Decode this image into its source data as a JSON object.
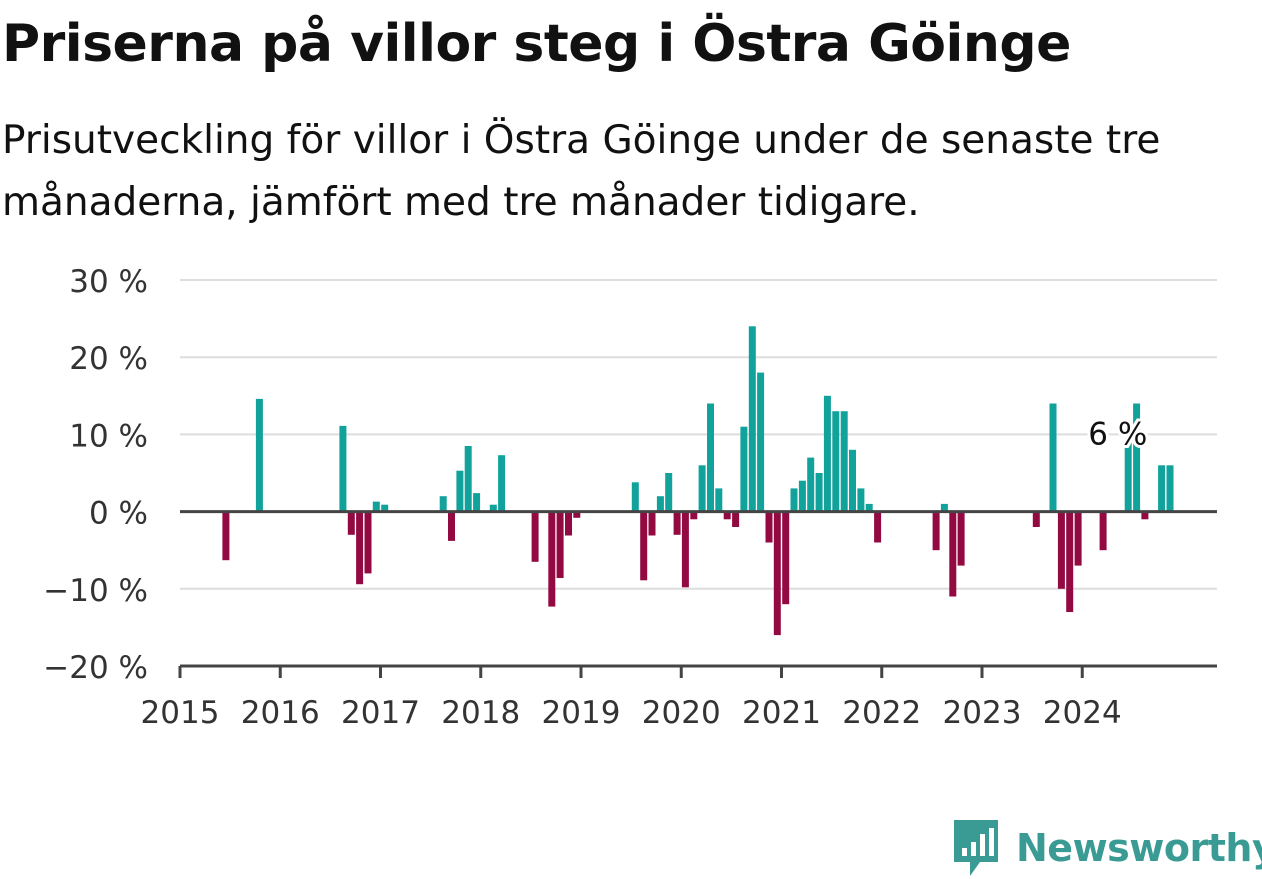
{
  "header": {
    "title": "Priserna på villor steg i Östra Göinge",
    "subtitle": "Prisutveckling för villor i Östra Göinge under de senaste tre månaderna, jämfört med tre månader tidigare."
  },
  "brand": {
    "name": "Newsworthy",
    "icon": "newsworthy-logo-icon"
  },
  "colors": {
    "positive": "#11a29b",
    "negative": "#930a43",
    "grid": "#dddddd",
    "axis": "#444444",
    "text": "#333333"
  },
  "chart_data": {
    "type": "bar",
    "x_unit": "month",
    "x_ticks": [
      2015,
      2016,
      2017,
      2018,
      2019,
      2020,
      2021,
      2022,
      2023,
      2024
    ],
    "y_ticks": [
      -20,
      -10,
      0,
      10,
      20,
      30
    ],
    "y_tick_labels": [
      "−20 %",
      "−10 %",
      "0 %",
      "10 %",
      "20 %",
      "30 %"
    ],
    "ylim": [
      -20,
      30
    ],
    "grid": true,
    "annotation": {
      "label": "6 %",
      "month": "2024-12"
    },
    "months": [
      "2015-06",
      "2015-10",
      "2016-08",
      "2016-09",
      "2016-10",
      "2016-11",
      "2016-12",
      "2017-01",
      "2017-08",
      "2017-09",
      "2017-10",
      "2017-11",
      "2017-12",
      "2018-02",
      "2018-03",
      "2018-07",
      "2018-09",
      "2018-10",
      "2018-11",
      "2018-12",
      "2019-07",
      "2019-08",
      "2019-09",
      "2019-10",
      "2019-11",
      "2019-12",
      "2020-01",
      "2020-02",
      "2020-03",
      "2020-04",
      "2020-05",
      "2020-06",
      "2020-07",
      "2020-08",
      "2020-09",
      "2020-10",
      "2020-11",
      "2020-12",
      "2021-01",
      "2021-02",
      "2021-03",
      "2021-04",
      "2021-05",
      "2021-06",
      "2021-07",
      "2021-08",
      "2021-09",
      "2021-10",
      "2021-11",
      "2021-12",
      "2022-07",
      "2022-08",
      "2022-09",
      "2022-10",
      "2023-07",
      "2023-09",
      "2023-10",
      "2023-11",
      "2023-12",
      "2024-03",
      "2024-06",
      "2024-07",
      "2024-08",
      "2024-10",
      "2024-11"
    ],
    "values": [
      -6.3,
      14.6,
      11.1,
      -3.0,
      -9.4,
      -8.0,
      1.3,
      0.9,
      2.0,
      -3.8,
      5.3,
      8.5,
      2.4,
      0.9,
      7.3,
      -6.5,
      -12.3,
      -8.6,
      -3.1,
      -0.8,
      3.8,
      -8.9,
      -3.1,
      2.0,
      5.0,
      -3.0,
      -9.8,
      -1.0,
      6.0,
      14.0,
      3.0,
      -1.0,
      -2.0,
      11.0,
      24.0,
      18.0,
      -4.0,
      -16.0,
      -12.0,
      3.0,
      4.0,
      7.0,
      5.0,
      15.0,
      13.0,
      13.0,
      8.0,
      3.0,
      1.0,
      -4.0,
      -5.0,
      1.0,
      -11.0,
      -7.0,
      -2.0,
      14.0,
      -10.0,
      -13.0,
      -7.0,
      -5.0,
      9.0,
      14.0,
      -1.0,
      6.0,
      6.0
    ]
  }
}
